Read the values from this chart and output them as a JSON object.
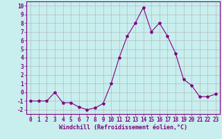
{
  "x": [
    0,
    1,
    2,
    3,
    4,
    5,
    6,
    7,
    8,
    9,
    10,
    11,
    12,
    13,
    14,
    15,
    16,
    17,
    18,
    19,
    20,
    21,
    22,
    23
  ],
  "y": [
    -1.0,
    -1.0,
    -1.0,
    0.0,
    -1.2,
    -1.2,
    -1.7,
    -2.0,
    -1.8,
    -1.3,
    1.0,
    4.0,
    6.5,
    8.0,
    9.8,
    7.0,
    8.0,
    6.5,
    4.5,
    1.5,
    0.8,
    -0.5,
    -0.5,
    -0.2
  ],
  "line_color": "#800080",
  "marker": "*",
  "marker_size": 3,
  "bg_color": "#c8eeee",
  "grid_color": "#b0b0b0",
  "xlabel": "Windchill (Refroidissement éolien,°C)",
  "ylabel_ticks": [
    -2,
    -1,
    0,
    1,
    2,
    3,
    4,
    5,
    6,
    7,
    8,
    9,
    10
  ],
  "xlim": [
    -0.5,
    23.5
  ],
  "ylim": [
    -2.5,
    10.5
  ],
  "tick_color": "#800080",
  "label_color": "#800080",
  "tick_fontsize": 5.5,
  "xlabel_fontsize": 6.0
}
